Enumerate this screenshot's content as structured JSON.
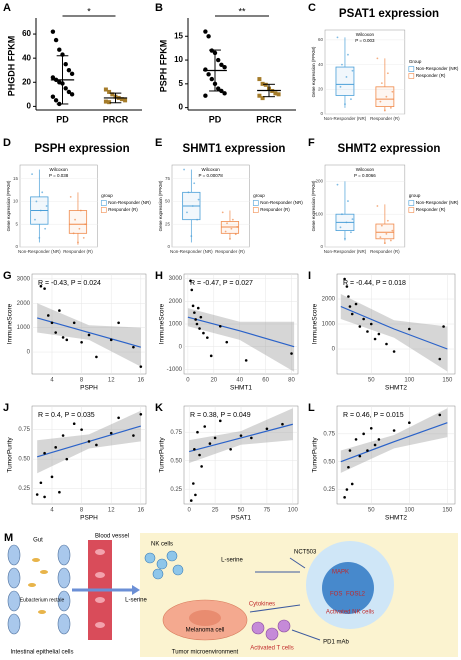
{
  "chart_data": [
    {
      "type": "dot",
      "panel": "A",
      "ylabel": "PHGDH FPKM",
      "categories": [
        "PD",
        "PRCR"
      ],
      "colors": [
        "#000000",
        "#a57c2a"
      ],
      "values": [
        [
          62,
          55,
          47,
          43,
          35,
          30,
          27,
          24,
          22,
          20,
          19,
          15,
          12,
          10,
          8,
          5,
          2
        ],
        [
          14,
          12,
          10,
          8,
          7,
          6,
          5,
          4,
          3.5
        ]
      ],
      "means": [
        22,
        7
      ],
      "errors": [
        20,
        4
      ],
      "ylim": [
        -3,
        70
      ],
      "yticks": [
        0,
        20,
        40,
        60
      ],
      "annotation": "*"
    },
    {
      "type": "dot",
      "panel": "B",
      "ylabel": "PSPH FPKM",
      "categories": [
        "PD",
        "PRCR"
      ],
      "colors": [
        "#000000",
        "#a57c2a"
      ],
      "values": [
        [
          16,
          15,
          12,
          11.5,
          10,
          9,
          8.5,
          8,
          7,
          6,
          5,
          4,
          3.5,
          3,
          2.5
        ],
        [
          6,
          5,
          4.8,
          4,
          3.5,
          3,
          2.8,
          2.5,
          2
        ]
      ],
      "means": [
        7.8,
        3.6
      ],
      "errors": [
        4.3,
        1.3
      ],
      "ylim": [
        -0.5,
        18
      ],
      "yticks": [
        0,
        5,
        10,
        15
      ],
      "annotation": "**"
    },
    {
      "type": "box",
      "panel": "C",
      "title": "PSAT1 expression",
      "test": "Wilcoxon",
      "pvalue": "P = 0.003",
      "ylabel": "Gene expression (FPKM)",
      "categories": [
        "Non-Responder (NR)",
        "Responder (R)"
      ],
      "legend_title": "Group",
      "colors": [
        "#4a9fd8",
        "#f08a4b"
      ],
      "boxes": [
        {
          "min": 5,
          "q1": 15,
          "median": 24,
          "q3": 38,
          "max": 62
        },
        {
          "min": 2,
          "q1": 6,
          "median": 12,
          "q3": 22,
          "max": 45
        }
      ],
      "points": [
        [
          62,
          48,
          40,
          35,
          30,
          22,
          12,
          8
        ],
        [
          45,
          33,
          25,
          18,
          14,
          10,
          5,
          3
        ]
      ],
      "ylim": [
        0,
        68
      ],
      "yticks": [
        0,
        20,
        40,
        60
      ]
    },
    {
      "type": "box",
      "panel": "D",
      "title": "PSPH expression",
      "test": "Wilcoxon",
      "pvalue": "P = 0.038",
      "ylabel": "Gene expression (FPKM)",
      "categories": [
        "Non-Responder (NR)",
        "Responder (R)"
      ],
      "legend_title": "group",
      "colors": [
        "#4a9fd8",
        "#f08a4b"
      ],
      "boxes": [
        {
          "min": 1,
          "q1": 5,
          "median": 8,
          "q3": 11,
          "max": 17
        },
        {
          "min": 0.5,
          "q1": 3,
          "median": 5,
          "q3": 8,
          "max": 12
        }
      ],
      "points": [
        [
          16,
          12,
          10,
          9,
          8,
          6,
          4,
          2
        ],
        [
          11,
          8,
          6,
          5,
          4,
          3,
          2,
          1
        ]
      ],
      "ylim": [
        0,
        18
      ],
      "yticks": [
        0,
        5,
        10,
        15
      ]
    },
    {
      "type": "box",
      "panel": "E",
      "title": "SHMT1 expression",
      "test": "Wilcoxon",
      "pvalue": "P = 0.00078",
      "ylabel": "Gene expression (FPKM)",
      "categories": [
        "Non-Responder (NR)",
        "Responder (R)"
      ],
      "legend_title": "group",
      "colors": [
        "#4a9fd8",
        "#f08a4b"
      ],
      "boxes": [
        {
          "min": 5,
          "q1": 30,
          "median": 45,
          "q3": 60,
          "max": 85
        },
        {
          "min": 8,
          "q1": 15,
          "median": 22,
          "q3": 28,
          "max": 40
        }
      ],
      "points": [
        [
          85,
          70,
          60,
          52,
          45,
          38,
          30,
          12
        ],
        [
          38,
          30,
          26,
          22,
          20,
          17,
          14,
          9
        ]
      ],
      "ylim": [
        0,
        90
      ],
      "yticks": [
        0,
        25,
        50,
        75
      ]
    },
    {
      "type": "box",
      "panel": "F",
      "title": "SHMT2 expression",
      "test": "Wilcoxon",
      "pvalue": "P = 0.0066",
      "ylabel": "Gene expression (FPKM)",
      "categories": [
        "Non-Responder (NR)",
        "Responder (R)"
      ],
      "legend_title": "group",
      "colors": [
        "#4a9fd8",
        "#f08a4b"
      ],
      "boxes": [
        {
          "min": 20,
          "q1": 50,
          "median": 75,
          "q3": 100,
          "max": 200
        },
        {
          "min": 10,
          "q1": 25,
          "median": 45,
          "q3": 70,
          "max": 130
        }
      ],
      "points": [
        [
          190,
          140,
          100,
          85,
          75,
          60,
          45,
          25
        ],
        [
          125,
          80,
          65,
          50,
          40,
          30,
          20,
          12
        ]
      ],
      "ylim": [
        0,
        250
      ],
      "yticks": [
        0,
        100,
        200
      ]
    },
    {
      "type": "scatter",
      "panel": "G",
      "xlabel": "PSPH",
      "ylabel": "ImmuneScore",
      "annotation": "R = -0.43, P = 0.024",
      "x": [
        2.5,
        3,
        3.5,
        4,
        4.5,
        5,
        5.5,
        6,
        7,
        8,
        9,
        10,
        12,
        13,
        15,
        16
      ],
      "y": [
        2700,
        2600,
        1500,
        1200,
        800,
        1700,
        600,
        500,
        1200,
        400,
        700,
        -200,
        500,
        1200,
        200,
        -600
      ],
      "fit": {
        "x": [
          2,
          9,
          16
        ],
        "y": [
          1400,
          800,
          200
        ],
        "low": [
          800,
          500,
          -600
        ],
        "high": [
          2000,
          1100,
          1000
        ]
      },
      "xlim": [
        1.3,
        16.7
      ],
      "ylim": [
        -900,
        3200
      ],
      "xticks": [
        4,
        8,
        12,
        16
      ],
      "yticks": [
        0,
        1000,
        2000,
        3000
      ]
    },
    {
      "type": "scatter",
      "panel": "H",
      "xlabel": "SHMT1",
      "ylabel": "ImmuneScore",
      "annotation": "R = -0.47, P = 0.027",
      "x": [
        2,
        3,
        4,
        5,
        6,
        7,
        8,
        9,
        10,
        12,
        15,
        18,
        25,
        30,
        45,
        80
      ],
      "y": [
        2900,
        2500,
        1800,
        1500,
        1200,
        1000,
        1700,
        800,
        1300,
        600,
        400,
        -400,
        900,
        200,
        -600,
        -300
      ],
      "fit": {
        "x": [
          0,
          40,
          82
        ],
        "y": [
          1300,
          700,
          0
        ],
        "low": [
          900,
          300,
          -1100
        ],
        "high": [
          1700,
          1100,
          1100
        ]
      },
      "xlim": [
        -3,
        85
      ],
      "ylim": [
        -1200,
        3200
      ],
      "xticks": [
        0,
        20,
        40,
        60,
        80
      ],
      "yticks": [
        -1000,
        0,
        1000,
        2000,
        3000
      ]
    },
    {
      "type": "scatter",
      "panel": "I",
      "xlabel": "SHMT2",
      "ylabel": "ImmuneScore",
      "annotation": "R = -0.44, P = 0.018",
      "x": [
        15,
        18,
        20,
        22,
        25,
        30,
        35,
        40,
        45,
        50,
        55,
        60,
        70,
        80,
        100,
        140,
        145
      ],
      "y": [
        2800,
        2500,
        2100,
        1700,
        1400,
        1800,
        900,
        1200,
        700,
        1000,
        400,
        600,
        200,
        -100,
        800,
        -400,
        900
      ],
      "fit": {
        "x": [
          10,
          80,
          150
        ],
        "y": [
          1700,
          800,
          0
        ],
        "low": [
          1200,
          450,
          -900
        ],
        "high": [
          2200,
          1150,
          900
        ]
      },
      "xlim": [
        5,
        160
      ],
      "ylim": [
        -1000,
        3000
      ],
      "xticks": [
        50,
        100,
        150
      ],
      "yticks": [
        0,
        1000,
        2000
      ]
    },
    {
      "type": "scatter",
      "panel": "J",
      "xlabel": "PSPH",
      "ylabel": "TumorPurity",
      "annotation": "R = 0.4, P = 0.035",
      "x": [
        2,
        2.5,
        3,
        3,
        4,
        4.5,
        5,
        5.5,
        6,
        7,
        8,
        9,
        10,
        12,
        13,
        15,
        16
      ],
      "y": [
        0.2,
        0.3,
        0.55,
        0.18,
        0.35,
        0.6,
        0.22,
        0.7,
        0.5,
        0.8,
        0.75,
        0.65,
        0.62,
        0.72,
        0.85,
        0.7,
        0.88
      ],
      "fit": {
        "x": [
          2,
          9,
          16
        ],
        "y": [
          0.52,
          0.65,
          0.78
        ],
        "low": [
          0.38,
          0.59,
          0.65
        ],
        "high": [
          0.66,
          0.71,
          0.91
        ]
      },
      "xlim": [
        1.3,
        16.7
      ],
      "ylim": [
        0.12,
        0.95
      ],
      "xticks": [
        4,
        8,
        12,
        16
      ],
      "yticks": [
        {
          "value": 0.25,
          "label": "0.25"
        },
        {
          "value": 0.5,
          "label": "0.50"
        },
        {
          "value": 0.75,
          "label": "0.75"
        }
      ]
    },
    {
      "type": "scatter",
      "panel": "K",
      "xlabel": "PSAT1",
      "ylabel": "TumorPurity",
      "annotation": "R = 0.38, P = 0.049",
      "x": [
        2,
        4,
        5,
        6,
        8,
        10,
        12,
        15,
        20,
        25,
        30,
        40,
        50,
        60,
        75,
        90
      ],
      "y": [
        0.15,
        0.3,
        0.6,
        0.2,
        0.75,
        0.55,
        0.45,
        0.8,
        0.65,
        0.7,
        0.85,
        0.6,
        0.72,
        0.7,
        0.78,
        0.82
      ],
      "fit": {
        "x": [
          0,
          50,
          100
        ],
        "y": [
          0.58,
          0.7,
          0.82
        ],
        "low": [
          0.48,
          0.64,
          0.68
        ],
        "high": [
          0.68,
          0.76,
          0.96
        ]
      },
      "xlim": [
        -5,
        105
      ],
      "ylim": [
        0.12,
        0.98
      ],
      "xticks": [
        0,
        25,
        50,
        75,
        100
      ],
      "yticks": [
        {
          "value": 0.25,
          "label": "0.25"
        },
        {
          "value": 0.5,
          "label": "0.50"
        },
        {
          "value": 0.75,
          "label": "0.75"
        }
      ]
    },
    {
      "type": "scatter",
      "panel": "L",
      "xlabel": "SHMT2",
      "ylabel": "TumorPurity",
      "annotation": "R = 0.46, P = 0.015",
      "x": [
        15,
        18,
        20,
        22,
        25,
        30,
        35,
        40,
        45,
        50,
        55,
        60,
        80,
        100,
        140
      ],
      "y": [
        0.18,
        0.25,
        0.45,
        0.6,
        0.3,
        0.7,
        0.55,
        0.75,
        0.6,
        0.8,
        0.65,
        0.7,
        0.78,
        0.85,
        0.92
      ],
      "fit": {
        "x": [
          10,
          80,
          150
        ],
        "y": [
          0.5,
          0.68,
          0.85
        ],
        "low": [
          0.4,
          0.62,
          0.72
        ],
        "high": [
          0.6,
          0.74,
          0.98
        ]
      },
      "xlim": [
        5,
        160
      ],
      "ylim": [
        0.12,
        1.0
      ],
      "xticks": [
        50,
        100,
        150
      ],
      "yticks": [
        {
          "value": 0.25,
          "label": "0.25"
        },
        {
          "value": 0.5,
          "label": "0.50"
        },
        {
          "value": 0.75,
          "label": "0.75"
        }
      ]
    }
  ],
  "diagram": {
    "panel": "M",
    "gut": "Gut",
    "blood_vessel": "Blood vessel",
    "bacterium": "Eubacterium rectale",
    "epithelial": "Intestinal epithelial cells",
    "serine_left": "L-serine",
    "nk_cells": "NK cells",
    "serine_right": "L-serine",
    "inhibitor": "NCT503",
    "mapk": "MAPK",
    "fos": "FOS",
    "fosl2": "FOSL2",
    "activated_nk": "Activated NK cells",
    "melanoma": "Melanoma cell",
    "cytokines": "Cytokines",
    "activated_t": "Activated T cells",
    "antibody": "PD1 mAb",
    "tme": "Tumor microenvironment"
  }
}
